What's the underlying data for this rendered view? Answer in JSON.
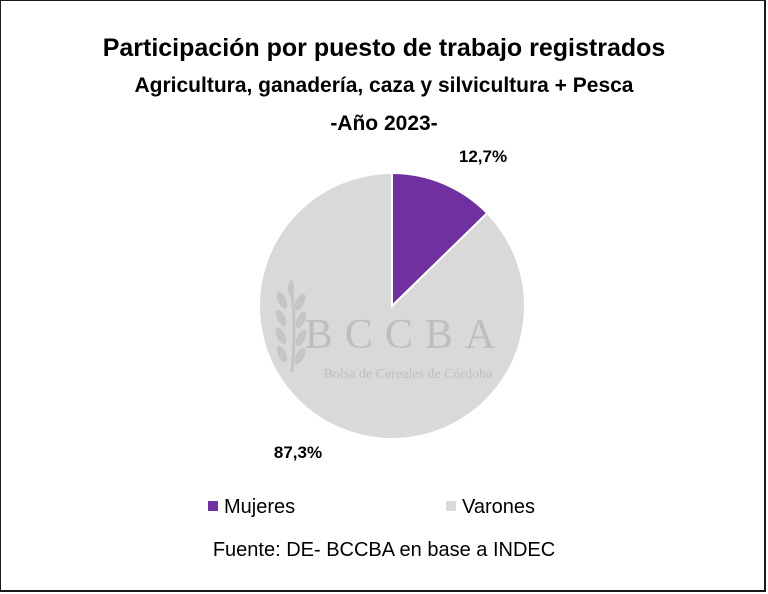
{
  "title": "Participación por puesto de trabajo registrados",
  "subtitle": "Agricultura, ganadería, caza y silvicultura + Pesca",
  "subtitle2": "-Año 2023-",
  "source": "Fuente: DE- BCCBA en base a INDEC",
  "watermark": {
    "name": "BCCBA",
    "subtitle": "Bolsa de Cereales de Córdoba"
  },
  "colors": {
    "mujeres": "#7030a0",
    "varones": "#d9d9d9"
  },
  "chart_data": {
    "type": "pie",
    "categories": [
      "Mujeres",
      "Varones"
    ],
    "values": [
      12.7,
      87.3
    ],
    "data_labels": [
      "12,7%",
      "87,3%"
    ],
    "start_angle": "12 o'clock",
    "direction": "clockwise",
    "legend": "bottom"
  }
}
